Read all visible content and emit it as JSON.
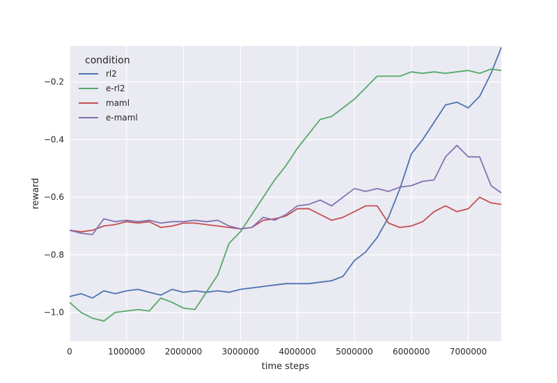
{
  "chart_data": {
    "type": "line",
    "title": "",
    "xlabel": "time steps",
    "ylabel": "reward",
    "xlim": [
      0,
      7580000
    ],
    "ylim": [
      -1.1,
      -0.075
    ],
    "xticks": [
      0,
      1000000,
      2000000,
      3000000,
      4000000,
      5000000,
      6000000,
      7000000
    ],
    "xtick_labels": [
      "0",
      "1000000",
      "2000000",
      "3000000",
      "4000000",
      "5000000",
      "6000000",
      "7000000"
    ],
    "yticks": [
      -1.0,
      -0.8,
      -0.6,
      -0.4,
      -0.2
    ],
    "ytick_labels": [
      "−1.0",
      "−0.8",
      "−0.6",
      "−0.4",
      "−0.2"
    ],
    "grid": true,
    "legend": {
      "title": "condition",
      "placement": "top-left"
    },
    "series": [
      {
        "name": "rl2",
        "color": "#4c72b0",
        "points": [
          [
            0,
            -0.945
          ],
          [
            200000,
            -0.935
          ],
          [
            400000,
            -0.95
          ],
          [
            600000,
            -0.925
          ],
          [
            800000,
            -0.935
          ],
          [
            1000000,
            -0.925
          ],
          [
            1200000,
            -0.92
          ],
          [
            1400000,
            -0.93
          ],
          [
            1600000,
            -0.94
          ],
          [
            1800000,
            -0.92
          ],
          [
            2000000,
            -0.93
          ],
          [
            2200000,
            -0.925
          ],
          [
            2400000,
            -0.93
          ],
          [
            2600000,
            -0.925
          ],
          [
            2800000,
            -0.93
          ],
          [
            3000000,
            -0.92
          ],
          [
            3200000,
            -0.915
          ],
          [
            3400000,
            -0.91
          ],
          [
            3600000,
            -0.905
          ],
          [
            3800000,
            -0.9
          ],
          [
            4000000,
            -0.9
          ],
          [
            4200000,
            -0.9
          ],
          [
            4400000,
            -0.895
          ],
          [
            4600000,
            -0.89
          ],
          [
            4800000,
            -0.875
          ],
          [
            5000000,
            -0.82
          ],
          [
            5200000,
            -0.79
          ],
          [
            5400000,
            -0.74
          ],
          [
            5600000,
            -0.67
          ],
          [
            5800000,
            -0.57
          ],
          [
            6000000,
            -0.45
          ],
          [
            6200000,
            -0.4
          ],
          [
            6400000,
            -0.34
          ],
          [
            6600000,
            -0.28
          ],
          [
            6800000,
            -0.27
          ],
          [
            7000000,
            -0.29
          ],
          [
            7200000,
            -0.25
          ],
          [
            7400000,
            -0.17
          ],
          [
            7580000,
            -0.08
          ]
        ]
      },
      {
        "name": "e-rl2",
        "color": "#55a868",
        "points": [
          [
            0,
            -0.965
          ],
          [
            200000,
            -1.0
          ],
          [
            400000,
            -1.02
          ],
          [
            600000,
            -1.03
          ],
          [
            800000,
            -1.0
          ],
          [
            1000000,
            -0.995
          ],
          [
            1200000,
            -0.99
          ],
          [
            1400000,
            -0.995
          ],
          [
            1600000,
            -0.95
          ],
          [
            1800000,
            -0.965
          ],
          [
            2000000,
            -0.985
          ],
          [
            2200000,
            -0.99
          ],
          [
            2400000,
            -0.93
          ],
          [
            2600000,
            -0.87
          ],
          [
            2800000,
            -0.76
          ],
          [
            3000000,
            -0.72
          ],
          [
            3200000,
            -0.66
          ],
          [
            3400000,
            -0.6
          ],
          [
            3600000,
            -0.54
          ],
          [
            3800000,
            -0.49
          ],
          [
            4000000,
            -0.43
          ],
          [
            4200000,
            -0.38
          ],
          [
            4400000,
            -0.33
          ],
          [
            4600000,
            -0.32
          ],
          [
            4800000,
            -0.29
          ],
          [
            5000000,
            -0.26
          ],
          [
            5200000,
            -0.22
          ],
          [
            5400000,
            -0.18
          ],
          [
            5600000,
            -0.18
          ],
          [
            5800000,
            -0.18
          ],
          [
            6000000,
            -0.165
          ],
          [
            6200000,
            -0.17
          ],
          [
            6400000,
            -0.165
          ],
          [
            6600000,
            -0.17
          ],
          [
            6800000,
            -0.165
          ],
          [
            7000000,
            -0.16
          ],
          [
            7200000,
            -0.17
          ],
          [
            7400000,
            -0.155
          ],
          [
            7580000,
            -0.16
          ]
        ]
      },
      {
        "name": "maml",
        "color": "#c44e52",
        "points": [
          [
            0,
            -0.715
          ],
          [
            200000,
            -0.72
          ],
          [
            400000,
            -0.715
          ],
          [
            600000,
            -0.7
          ],
          [
            800000,
            -0.695
          ],
          [
            1000000,
            -0.685
          ],
          [
            1200000,
            -0.69
          ],
          [
            1400000,
            -0.685
          ],
          [
            1600000,
            -0.705
          ],
          [
            1800000,
            -0.7
          ],
          [
            2000000,
            -0.69
          ],
          [
            2200000,
            -0.69
          ],
          [
            2400000,
            -0.695
          ],
          [
            2600000,
            -0.7
          ],
          [
            2800000,
            -0.705
          ],
          [
            3000000,
            -0.71
          ],
          [
            3200000,
            -0.705
          ],
          [
            3400000,
            -0.68
          ],
          [
            3600000,
            -0.675
          ],
          [
            3800000,
            -0.665
          ],
          [
            4000000,
            -0.64
          ],
          [
            4200000,
            -0.64
          ],
          [
            4400000,
            -0.66
          ],
          [
            4600000,
            -0.68
          ],
          [
            4800000,
            -0.67
          ],
          [
            5000000,
            -0.65
          ],
          [
            5200000,
            -0.63
          ],
          [
            5400000,
            -0.63
          ],
          [
            5600000,
            -0.69
          ],
          [
            5800000,
            -0.705
          ],
          [
            6000000,
            -0.7
          ],
          [
            6200000,
            -0.685
          ],
          [
            6400000,
            -0.65
          ],
          [
            6600000,
            -0.63
          ],
          [
            6800000,
            -0.65
          ],
          [
            7000000,
            -0.64
          ],
          [
            7200000,
            -0.6
          ],
          [
            7400000,
            -0.62
          ],
          [
            7580000,
            -0.625
          ]
        ]
      },
      {
        "name": "e-maml",
        "color": "#8172b2",
        "points": [
          [
            0,
            -0.715
          ],
          [
            200000,
            -0.725
          ],
          [
            400000,
            -0.73
          ],
          [
            600000,
            -0.675
          ],
          [
            800000,
            -0.685
          ],
          [
            1000000,
            -0.68
          ],
          [
            1200000,
            -0.685
          ],
          [
            1400000,
            -0.68
          ],
          [
            1600000,
            -0.69
          ],
          [
            1800000,
            -0.685
          ],
          [
            2000000,
            -0.685
          ],
          [
            2200000,
            -0.68
          ],
          [
            2400000,
            -0.685
          ],
          [
            2600000,
            -0.68
          ],
          [
            2800000,
            -0.7
          ],
          [
            3000000,
            -0.71
          ],
          [
            3200000,
            -0.705
          ],
          [
            3400000,
            -0.67
          ],
          [
            3600000,
            -0.68
          ],
          [
            3800000,
            -0.66
          ],
          [
            4000000,
            -0.63
          ],
          [
            4200000,
            -0.625
          ],
          [
            4400000,
            -0.61
          ],
          [
            4600000,
            -0.63
          ],
          [
            4800000,
            -0.6
          ],
          [
            5000000,
            -0.57
          ],
          [
            5200000,
            -0.58
          ],
          [
            5400000,
            -0.57
          ],
          [
            5600000,
            -0.58
          ],
          [
            5800000,
            -0.565
          ],
          [
            6000000,
            -0.56
          ],
          [
            6200000,
            -0.545
          ],
          [
            6400000,
            -0.54
          ],
          [
            6600000,
            -0.46
          ],
          [
            6800000,
            -0.42
          ],
          [
            7000000,
            -0.46
          ],
          [
            7200000,
            -0.46
          ],
          [
            7400000,
            -0.56
          ],
          [
            7580000,
            -0.585
          ]
        ]
      }
    ]
  }
}
